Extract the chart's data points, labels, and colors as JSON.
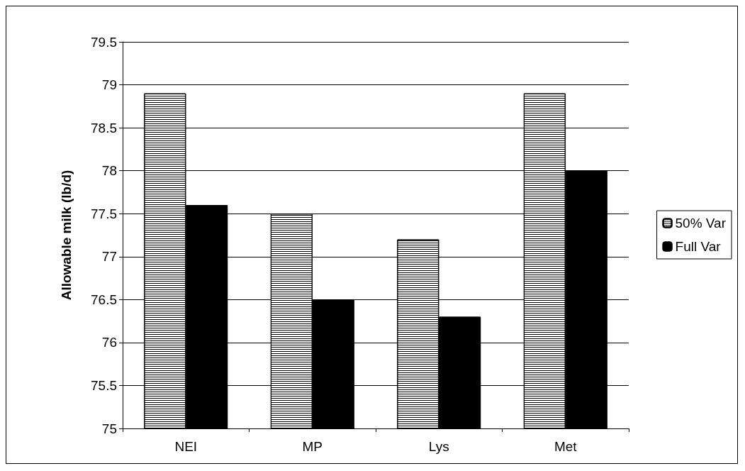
{
  "chart_data": {
    "type": "bar",
    "ylabel": "Allowable milk (lb/d)",
    "categories": [
      "NEI",
      "MP",
      "Lys",
      "Met"
    ],
    "series": [
      {
        "name": "50% Var",
        "color": "#ffffff",
        "values": [
          78.9,
          77.5,
          77.2,
          78.9
        ]
      },
      {
        "name": "Full Var",
        "color": "#000000",
        "values": [
          77.6,
          76.5,
          76.3,
          78.0
        ]
      }
    ],
    "ylim": [
      75,
      79.5
    ],
    "yticks": [
      75,
      75.5,
      76,
      76.5,
      77,
      77.5,
      78,
      78.5,
      79,
      79.5
    ],
    "grid": "y",
    "legend": "right"
  }
}
